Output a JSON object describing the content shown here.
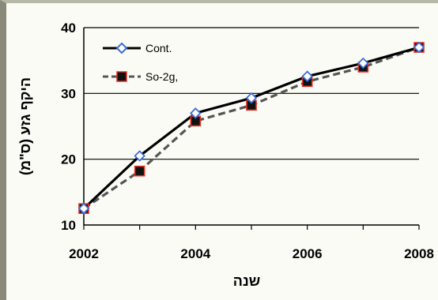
{
  "chart_data": {
    "type": "line",
    "title": "",
    "xlabel": "שנה",
    "ylabel": "היקף גזע (ס\"מ)",
    "xlim": [
      2002,
      2008
    ],
    "ylim": [
      10,
      40
    ],
    "x_ticks": [
      "2002",
      "2004",
      "2006",
      "2008"
    ],
    "y_ticks": [
      "10",
      "20",
      "30",
      "40"
    ],
    "grid": "horizontal",
    "legend_position": "top-left",
    "x": [
      2002,
      2003,
      2004,
      2005,
      2006,
      2007,
      2008
    ],
    "series": [
      {
        "name": "Cont.",
        "values": [
          12.5,
          20.5,
          27.0,
          29.3,
          32.6,
          34.6,
          37.0
        ],
        "color": "#000000",
        "marker": "diamond-open-blue",
        "line_style": "solid"
      },
      {
        "name": "So-2g,",
        "values": [
          12.5,
          18.2,
          25.8,
          28.2,
          31.8,
          34.0,
          37.0
        ],
        "color": "#555555",
        "marker": "square-black-red-edge",
        "line_style": "dashed"
      }
    ]
  },
  "colors": {
    "marker_blue": "#3a6fd8",
    "marker_red": "#e03020",
    "grid": "#000000"
  }
}
